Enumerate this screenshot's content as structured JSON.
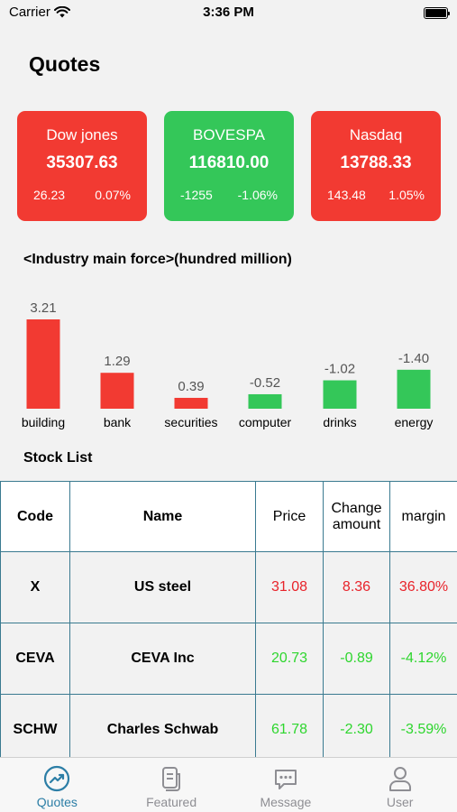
{
  "status": {
    "carrier": "Carrier",
    "time": "3:36 PM"
  },
  "page_title": "Quotes",
  "indices": [
    {
      "name": "Dow jones",
      "value": "35307.63",
      "change": "26.23",
      "percent": "0.07%",
      "color": "#f23a32"
    },
    {
      "name": "BOVESPA",
      "value": "116810.00",
      "change": "-1255",
      "percent": "-1.06%",
      "color": "#34c759"
    },
    {
      "name": "Nasdaq",
      "value": "13788.33",
      "change": "143.48",
      "percent": "1.05%",
      "color": "#f23a32"
    }
  ],
  "industry_title": "<Industry main force>(hundred million)",
  "chart_data": {
    "type": "bar",
    "categories": [
      "building",
      "bank",
      "securities",
      "computer",
      "drinks",
      "energy"
    ],
    "values": [
      3.21,
      1.29,
      0.39,
      -0.52,
      -1.02,
      -1.4
    ],
    "labels": [
      "3.21",
      "1.29",
      "0.39",
      "-0.52",
      "-1.02",
      "-1.40"
    ],
    "positive_color": "#f23a32",
    "negative_color": "#34c759",
    "title": "<Industry main force>(hundred million)"
  },
  "stock_list_title": "Stock List",
  "table": {
    "headers": {
      "code": "Code",
      "name": "Name",
      "price": "Price",
      "change": "Change amount",
      "margin": "margin"
    },
    "rows": [
      {
        "code": "X",
        "name": "US steel",
        "price": "31.08",
        "change": "8.36",
        "margin": "36.80%",
        "color": "#e8232a"
      },
      {
        "code": "CEVA",
        "name": "CEVA Inc",
        "price": "20.73",
        "change": "-0.89",
        "margin": "-4.12%",
        "color": "#2ed62e"
      },
      {
        "code": "SCHW",
        "name": "Charles Schwab",
        "price": "61.78",
        "change": "-2.30",
        "margin": "-3.59%",
        "color": "#2ed62e"
      }
    ]
  },
  "tabs": [
    {
      "label": "Quotes",
      "icon": "chart-trend-icon",
      "active": true
    },
    {
      "label": "Featured",
      "icon": "document-icon",
      "active": false
    },
    {
      "label": "Message",
      "icon": "chat-bubble-icon",
      "active": false
    },
    {
      "label": "User",
      "icon": "user-icon",
      "active": false
    }
  ],
  "colors": {
    "accent": "#2c7ea6",
    "inactive": "#8e8e93"
  }
}
